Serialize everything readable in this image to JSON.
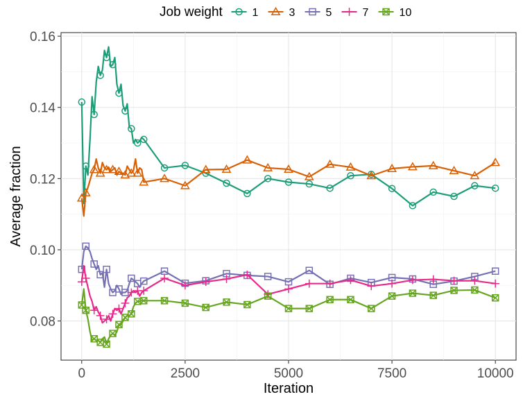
{
  "chart_data": {
    "type": "line",
    "xlabel": "Iteration",
    "ylabel": "Average fraction",
    "xlim": [
      -500,
      10500
    ],
    "ylim": [
      0.069,
      0.161
    ],
    "x_ticks": [
      0,
      2500,
      5000,
      7500,
      10000
    ],
    "y_ticks": [
      0.08,
      0.1,
      0.12,
      0.14,
      0.16
    ],
    "x_tick_labels": [
      "0",
      "2500",
      "5000",
      "7500",
      "10000"
    ],
    "y_tick_labels": [
      "0.08",
      "0.10",
      "0.12",
      "0.14",
      "0.16"
    ],
    "grid": true,
    "legend": {
      "title": "Job weight",
      "position": "top"
    },
    "series": [
      {
        "name": "1",
        "color": "#1b9e77",
        "marker": "circle",
        "x": [
          0,
          50,
          100,
          150,
          200,
          250,
          300,
          350,
          400,
          450,
          500,
          550,
          600,
          650,
          700,
          750,
          800,
          850,
          900,
          950,
          1000,
          1050,
          1100,
          1150,
          1200,
          1250,
          1300,
          1350,
          1400,
          1450,
          1500,
          2000,
          2500,
          3000,
          3500,
          4000,
          4500,
          5000,
          5500,
          6000,
          6500,
          7000,
          7500,
          8000,
          8500,
          9000,
          9500,
          10000
        ],
        "y": [
          0.1415,
          0.113,
          0.1235,
          0.121,
          0.131,
          0.143,
          0.138,
          0.147,
          0.1515,
          0.149,
          0.1505,
          0.156,
          0.154,
          0.157,
          0.1515,
          0.152,
          0.154,
          0.1465,
          0.144,
          0.1465,
          0.1405,
          0.139,
          0.141,
          0.1345,
          0.134,
          0.13,
          0.131,
          0.13,
          0.1305,
          0.1315,
          0.131,
          0.123,
          0.1237,
          0.1215,
          0.1187,
          0.1158,
          0.12,
          0.119,
          0.1185,
          0.1173,
          0.1208,
          0.1212,
          0.1172,
          0.1124,
          0.1162,
          0.115,
          0.118,
          0.1173
        ],
        "markers_x": [
          0,
          100,
          300,
          450,
          600,
          750,
          900,
          1050,
          1200,
          1350,
          1500,
          2000,
          2500,
          3000,
          3500,
          4000,
          4500,
          5000,
          5500,
          6000,
          6500,
          7000,
          7500,
          8000,
          8500,
          9000,
          9500,
          10000
        ]
      },
      {
        "name": "3",
        "color": "#d95f02",
        "marker": "triangle",
        "x": [
          0,
          50,
          100,
          150,
          200,
          250,
          300,
          350,
          400,
          450,
          500,
          550,
          600,
          650,
          700,
          750,
          800,
          850,
          900,
          950,
          1000,
          1050,
          1100,
          1150,
          1200,
          1250,
          1300,
          1350,
          1400,
          1450,
          1500,
          2000,
          2500,
          3000,
          3500,
          4000,
          4500,
          5000,
          5500,
          6000,
          6500,
          7000,
          7500,
          8000,
          8500,
          9000,
          9500,
          10000
        ],
        "y": [
          0.1145,
          0.1095,
          0.116,
          0.1175,
          0.1195,
          0.1215,
          0.1225,
          0.1255,
          0.123,
          0.1215,
          0.1245,
          0.123,
          0.1225,
          0.1232,
          0.122,
          0.1225,
          0.123,
          0.121,
          0.122,
          0.1215,
          0.1215,
          0.121,
          0.1235,
          0.1225,
          0.1215,
          0.1222,
          0.1255,
          0.1215,
          0.123,
          0.1225,
          0.119,
          0.12,
          0.118,
          0.1225,
          0.1226,
          0.1252,
          0.123,
          0.1226,
          0.1205,
          0.124,
          0.1232,
          0.1208,
          0.1228,
          0.1233,
          0.1236,
          0.1222,
          0.1208,
          0.1245
        ],
        "markers_x": [
          0,
          100,
          300,
          450,
          600,
          750,
          900,
          1050,
          1200,
          1350,
          1500,
          2000,
          2500,
          3000,
          3500,
          4000,
          4500,
          5000,
          5500,
          6000,
          6500,
          7000,
          7500,
          8000,
          8500,
          9000,
          9500,
          10000
        ]
      },
      {
        "name": "5",
        "color": "#7570b3",
        "marker": "square",
        "x": [
          0,
          50,
          100,
          150,
          200,
          250,
          300,
          350,
          400,
          450,
          500,
          550,
          600,
          650,
          700,
          750,
          800,
          850,
          900,
          950,
          1000,
          1050,
          1100,
          1150,
          1200,
          1250,
          1300,
          1350,
          1400,
          1450,
          1500,
          2000,
          2500,
          3000,
          3500,
          4000,
          4500,
          5000,
          5500,
          6000,
          6500,
          7000,
          7500,
          8000,
          8500,
          9000,
          9500,
          10000
        ],
        "y": [
          0.0945,
          0.0995,
          0.101,
          0.1005,
          0.0995,
          0.0975,
          0.096,
          0.0945,
          0.0955,
          0.093,
          0.0935,
          0.0895,
          0.0945,
          0.0905,
          0.089,
          0.088,
          0.0885,
          0.09,
          0.089,
          0.0875,
          0.088,
          0.088,
          0.0885,
          0.0905,
          0.092,
          0.0915,
          0.091,
          0.0905,
          0.0895,
          0.0905,
          0.0912,
          0.094,
          0.0906,
          0.0913,
          0.0933,
          0.0928,
          0.0925,
          0.091,
          0.0942,
          0.0903,
          0.092,
          0.0908,
          0.0922,
          0.0918,
          0.0903,
          0.0912,
          0.0925,
          0.094
        ],
        "markers_x": [
          0,
          100,
          300,
          450,
          600,
          750,
          900,
          1050,
          1200,
          1350,
          1500,
          2000,
          2500,
          3000,
          3500,
          4000,
          4500,
          5000,
          5500,
          6000,
          6500,
          7000,
          7500,
          8000,
          8500,
          9000,
          9500,
          10000
        ]
      },
      {
        "name": "7",
        "color": "#e7298a",
        "marker": "plus",
        "x": [
          0,
          50,
          100,
          150,
          200,
          250,
          300,
          350,
          400,
          450,
          500,
          550,
          600,
          650,
          700,
          750,
          800,
          850,
          900,
          950,
          1000,
          1050,
          1100,
          1150,
          1200,
          1250,
          1300,
          1350,
          1400,
          1450,
          1500,
          2000,
          2500,
          3000,
          3500,
          4000,
          4500,
          5000,
          5500,
          6000,
          6500,
          7000,
          7500,
          8000,
          8500,
          9000,
          9500,
          10000
        ],
        "y": [
          0.091,
          0.0955,
          0.092,
          0.0895,
          0.087,
          0.0855,
          0.083,
          0.084,
          0.0825,
          0.0815,
          0.0795,
          0.08,
          0.0805,
          0.0815,
          0.08,
          0.082,
          0.0835,
          0.083,
          0.0835,
          0.082,
          0.0835,
          0.085,
          0.0865,
          0.087,
          0.088,
          0.0885,
          0.088,
          0.0885,
          0.087,
          0.088,
          0.0885,
          0.092,
          0.09,
          0.091,
          0.0918,
          0.093,
          0.0875,
          0.089,
          0.0905,
          0.0905,
          0.0915,
          0.0898,
          0.0905,
          0.0915,
          0.0917,
          0.0913,
          0.0913,
          0.0905
        ],
        "markers_x": [
          0,
          100,
          300,
          450,
          600,
          750,
          900,
          1050,
          1200,
          1350,
          1500,
          2000,
          2500,
          3000,
          3500,
          4000,
          4500,
          5000,
          5500,
          6000,
          6500,
          7000,
          7500,
          8000,
          8500,
          9000,
          9500,
          10000
        ]
      },
      {
        "name": "10",
        "color": "#66a61e",
        "marker": "square-x",
        "x": [
          0,
          50,
          100,
          150,
          200,
          250,
          300,
          350,
          400,
          450,
          500,
          550,
          600,
          650,
          700,
          750,
          800,
          850,
          900,
          950,
          1000,
          1050,
          1100,
          1150,
          1200,
          1250,
          1300,
          1350,
          1400,
          1450,
          1500,
          2000,
          2500,
          3000,
          3500,
          4000,
          4500,
          5000,
          5500,
          6000,
          6500,
          7000,
          7500,
          8000,
          8500,
          9000,
          9500,
          10000
        ],
        "y": [
          0.0845,
          0.089,
          0.083,
          0.0805,
          0.077,
          0.0745,
          0.075,
          0.0745,
          0.0745,
          0.074,
          0.075,
          0.0755,
          0.0735,
          0.075,
          0.076,
          0.0765,
          0.076,
          0.077,
          0.079,
          0.079,
          0.08,
          0.081,
          0.0815,
          0.0815,
          0.082,
          0.084,
          0.085,
          0.0855,
          0.0855,
          0.0857,
          0.0857,
          0.0857,
          0.085,
          0.0838,
          0.0853,
          0.0846,
          0.087,
          0.0835,
          0.0835,
          0.086,
          0.086,
          0.0835,
          0.087,
          0.0878,
          0.0872,
          0.0886,
          0.0887,
          0.0865
        ],
        "markers_x": [
          0,
          100,
          300,
          450,
          600,
          750,
          900,
          1050,
          1200,
          1350,
          1500,
          2000,
          2500,
          3000,
          3500,
          4000,
          4500,
          5000,
          5500,
          6000,
          6500,
          7000,
          7500,
          8000,
          8500,
          9000,
          9500,
          10000
        ]
      }
    ]
  }
}
